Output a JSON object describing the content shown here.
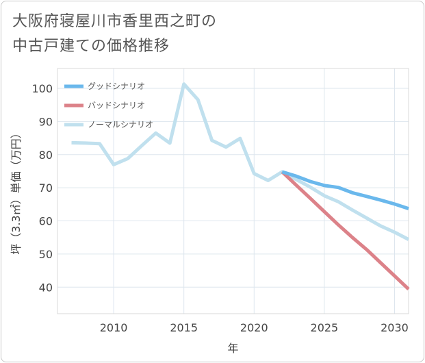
{
  "title_line1": "大阪府寝屋川市香里西之町の",
  "title_line2": "中古戸建ての価格推移",
  "chart_data": {
    "type": "line",
    "xlabel": "年",
    "ylabel": "坪（3.3㎡）単価（万円）",
    "xlim": [
      2006,
      2031
    ],
    "ylim": [
      32,
      106
    ],
    "xticks": [
      2010,
      2015,
      2020,
      2025,
      2030
    ],
    "yticks": [
      40,
      50,
      60,
      70,
      80,
      90,
      100
    ],
    "grid": true,
    "legend": "top-left",
    "series": [
      {
        "name": "グッドシナリオ",
        "color": "#6ab8ec",
        "x": [
          2022,
          2023,
          2024,
          2025,
          2026,
          2027,
          2028,
          2029,
          2030,
          2031
        ],
        "values": [
          74.8,
          73.5,
          71.9,
          70.7,
          70.1,
          68.5,
          67.4,
          66.3,
          65.1,
          63.7
        ]
      },
      {
        "name": "バッドシナリオ",
        "color": "#dc8289",
        "x": [
          2022,
          2023,
          2024,
          2025,
          2026,
          2027,
          2028,
          2029,
          2030,
          2031
        ],
        "values": [
          74.8,
          70.8,
          66.8,
          62.8,
          58.8,
          55.0,
          51.4,
          47.4,
          43.4,
          39.4
        ]
      },
      {
        "name": "ノーマルシナリオ",
        "color": "#c0e0ee",
        "x": [
          2007,
          2008,
          2009,
          2010,
          2011,
          2012,
          2013,
          2014,
          2015,
          2016,
          2017,
          2018,
          2019,
          2020,
          2021,
          2022,
          2023,
          2024,
          2025,
          2026,
          2027,
          2028,
          2029,
          2030,
          2031
        ],
        "values": [
          83.6,
          83.5,
          83.3,
          77.0,
          78.8,
          82.7,
          86.5,
          83.5,
          101.3,
          96.6,
          84.3,
          82.3,
          84.9,
          74.3,
          72.2,
          74.8,
          72.5,
          70.2,
          67.6,
          65.8,
          63.3,
          60.9,
          58.5,
          56.6,
          54.4
        ]
      }
    ]
  }
}
